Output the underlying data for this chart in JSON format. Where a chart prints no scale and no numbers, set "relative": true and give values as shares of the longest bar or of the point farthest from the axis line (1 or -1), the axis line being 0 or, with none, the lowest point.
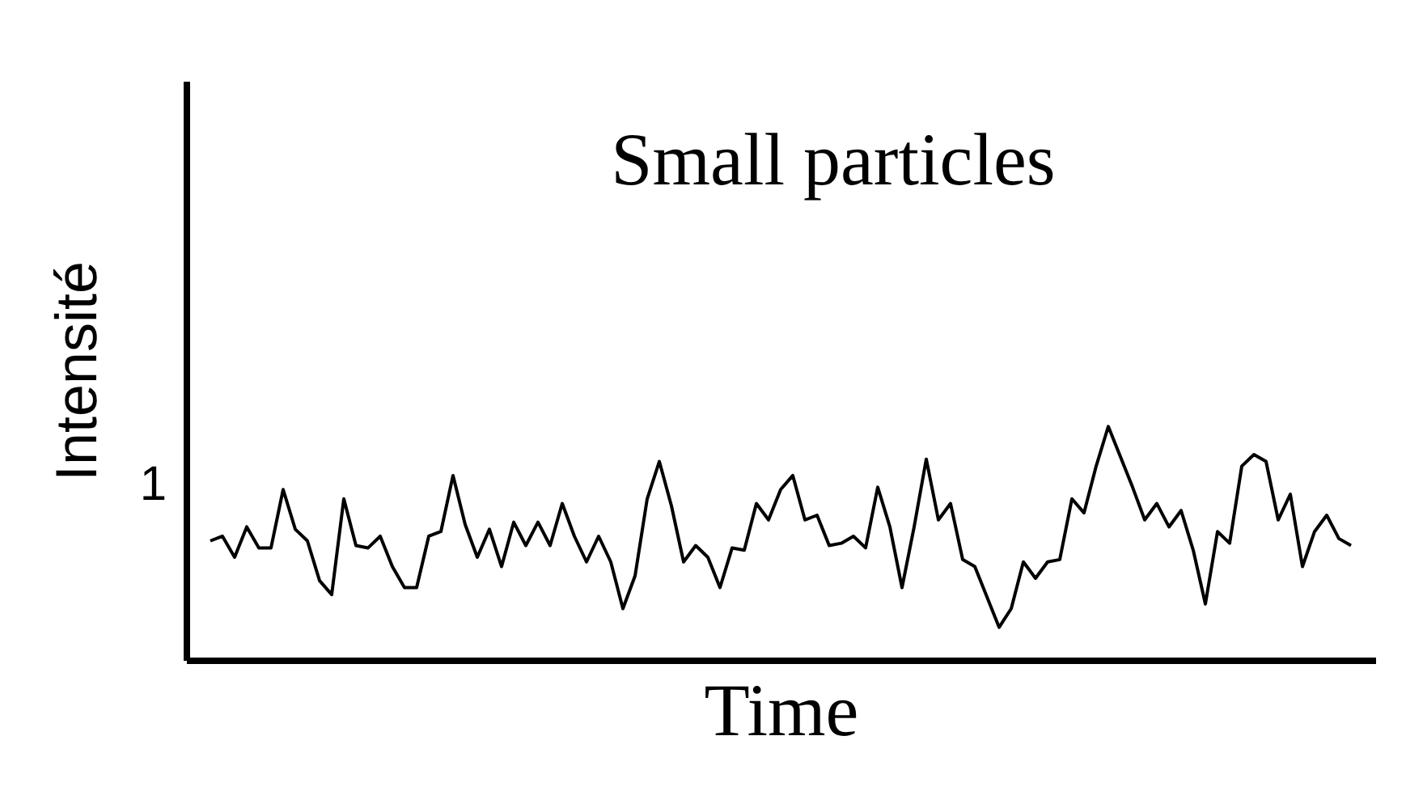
{
  "chart_data": {
    "type": "line",
    "title": "Small particles",
    "xlabel": "Time",
    "ylabel": "Intensité",
    "relative": true,
    "annotations": [
      "1"
    ],
    "color": "#000000",
    "line_style": "solid",
    "grid": false,
    "marker": "none",
    "categories": [
      null,
      null,
      null,
      null,
      null,
      null,
      null,
      null,
      null,
      null,
      null,
      null,
      null,
      null,
      null,
      null,
      null,
      null,
      null,
      null,
      null,
      null,
      null,
      null,
      null,
      null,
      null,
      null,
      null,
      null,
      null,
      null,
      null,
      null,
      null,
      null,
      null,
      null,
      null,
      null,
      null,
      null,
      null,
      null,
      null,
      null,
      null,
      null,
      null,
      null,
      null,
      null,
      null,
      null,
      null,
      null,
      null,
      null,
      null,
      null,
      null,
      null,
      null,
      null,
      null,
      null,
      null,
      null,
      null,
      null,
      null,
      null,
      null,
      null,
      null,
      null,
      null,
      null,
      null,
      null,
      null,
      null,
      null,
      null,
      null,
      null,
      null,
      null,
      null,
      null,
      null,
      null,
      null,
      null,
      null
    ],
    "values": [
      0.51,
      0.53,
      0.44,
      0.57,
      0.48,
      0.48,
      0.73,
      0.56,
      0.51,
      0.34,
      0.28,
      0.69,
      0.49,
      0.48,
      0.53,
      0.4,
      0.31,
      0.31,
      0.53,
      0.55,
      0.79,
      0.58,
      0.44,
      0.56,
      0.4,
      0.59,
      0.49,
      0.59,
      0.49,
      0.67,
      0.53,
      0.42,
      0.53,
      0.42,
      0.22,
      0.36,
      0.69,
      0.85,
      0.66,
      0.42,
      0.49,
      0.44,
      0.31,
      0.48,
      0.47,
      0.67,
      0.6,
      0.73,
      0.79,
      0.6,
      0.62,
      0.49,
      0.5,
      0.53,
      0.48,
      0.74,
      0.57,
      0.31,
      0.57,
      0.86,
      0.6,
      0.67,
      0.43,
      0.4,
      0.27,
      0.14,
      0.22,
      0.42,
      0.35,
      0.42,
      0.43,
      0.69,
      0.63,
      0.83,
      1,
      0.87,
      0.74,
      0.6,
      0.67,
      0.57,
      0.64,
      0.47,
      0.24,
      0.55,
      0.5,
      0.83,
      0.88,
      0.85,
      0.6,
      0.71,
      0.4,
      0.55,
      0.62,
      0.52,
      0.49
    ]
  }
}
